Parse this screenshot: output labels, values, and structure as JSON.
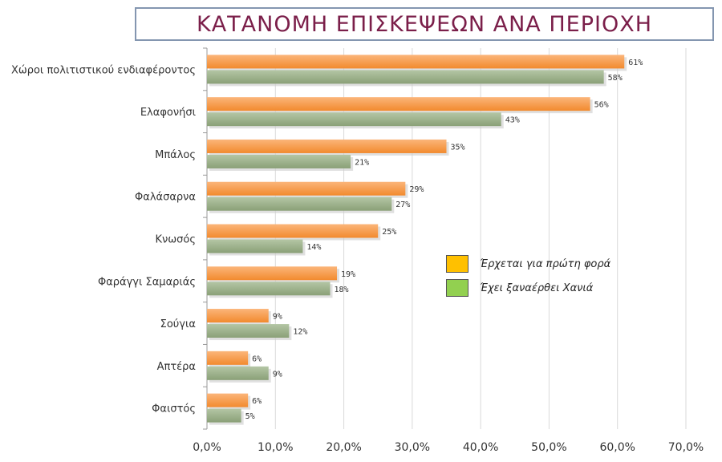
{
  "chart_data": {
    "type": "bar",
    "orientation": "horizontal",
    "title": "ΚΑΤΑΝΟΜΗ ΕΠΙΣΚΕΨΕΩΝ ΑΝΑ ΠΕΡΙΟΧΗ",
    "xlabel": "",
    "ylabel": "",
    "xlim": [
      0,
      70
    ],
    "ticks": [
      "0,0%",
      "10,0%",
      "20,0%",
      "30,0%",
      "40,0%",
      "50,0%",
      "60,0%",
      "70,0%"
    ],
    "categories": [
      "Χώροι πολιτιστικού ενδιαφέροντος",
      "Ελαφονήσι",
      "Μπάλος",
      "Φαλάσαρνα",
      "Κνωσός",
      "Φαράγγι Σαμαριάς",
      "Σούγια",
      "Απτέρα",
      "Φαιστός"
    ],
    "series": [
      {
        "name": "Έρχεται για πρώτη φορά",
        "color": "#f79646",
        "legend_color": "#ffc000",
        "values": [
          61,
          56,
          35,
          29,
          25,
          19,
          9,
          6,
          6
        ]
      },
      {
        "name": "Έχει ξαναέρθει Χανιά",
        "color": "#9bb08a",
        "legend_color": "#92d050",
        "values": [
          58,
          43,
          21,
          27,
          14,
          18,
          12,
          9,
          5
        ]
      }
    ],
    "grid": true,
    "legend_position": "right-middle"
  }
}
